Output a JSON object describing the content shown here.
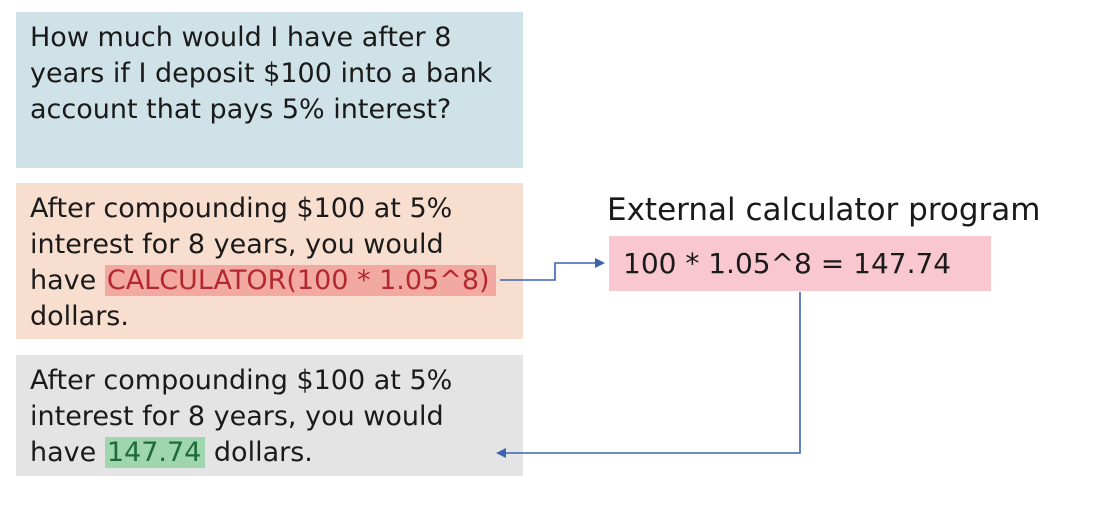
{
  "question": {
    "text": "How much would I have after 8 years if I deposit $100 into a bank account that pays 5% interest?"
  },
  "llm_output": {
    "text_before": "After compounding $100 at 5% interest for 8 years, you would have ",
    "calculator_call": "CALCULATOR(100 * 1.05^8)",
    "text_after": " dollars."
  },
  "calculator": {
    "title": "External calculator program",
    "expression": "100 * 1.05^8 = 147.74"
  },
  "final_answer": {
    "text_before": "After compounding $100 at 5% interest for 8 years, you would have ",
    "result": "147.74",
    "text_after": " dollars."
  },
  "colors": {
    "question_bg": "#cfe2e8",
    "llm_output_bg": "#f8decf",
    "final_answer_bg": "#e4e4e4",
    "calculator_bg": "#f8c7d0",
    "call_highlight": "#f2a9a2",
    "result_highlight": "#9fd6ad",
    "arrow": "#3a64b0"
  }
}
